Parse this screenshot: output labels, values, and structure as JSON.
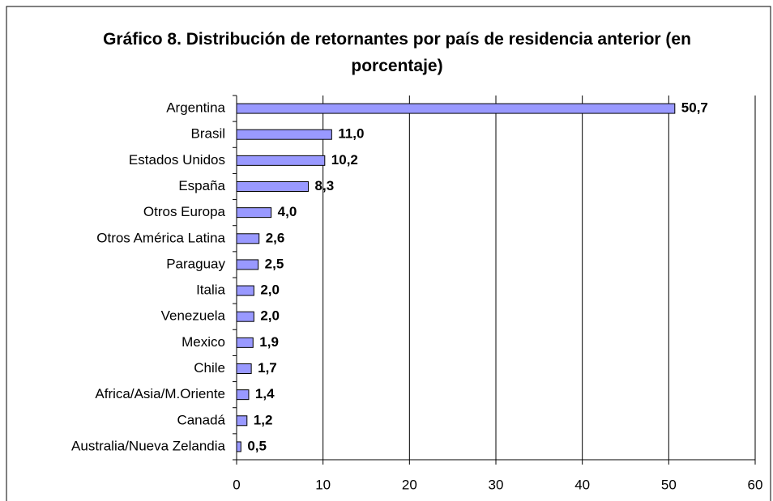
{
  "chart_data": {
    "type": "bar",
    "orientation": "horizontal",
    "title": "Gráfico 8. Distribución de retornantes por país de residencia anterior (en porcentaje)",
    "categories": [
      "Argentina",
      "Brasil",
      "Estados Unidos",
      "España",
      "Otros Europa",
      "Otros América Latina",
      "Paraguay",
      "Italia",
      "Venezuela",
      "Mexico",
      "Chile",
      "Africa/Asia/M.Oriente",
      "Canadá",
      "Australia/Nueva Zelandia"
    ],
    "values": [
      50.7,
      11.0,
      10.2,
      8.3,
      4.0,
      2.6,
      2.5,
      2.0,
      2.0,
      1.9,
      1.7,
      1.4,
      1.2,
      0.5
    ],
    "value_labels": [
      "50,7",
      "11,0",
      "10,2",
      "8,3",
      "4,0",
      "2,6",
      "2,5",
      "2,0",
      "2,0",
      "1,9",
      "1,7",
      "1,4",
      "1,2",
      "0,5"
    ],
    "color": "#9999ff",
    "xlim": [
      0,
      60
    ],
    "xticks": [
      0,
      10,
      20,
      30,
      40,
      50,
      60
    ],
    "grid": true
  }
}
